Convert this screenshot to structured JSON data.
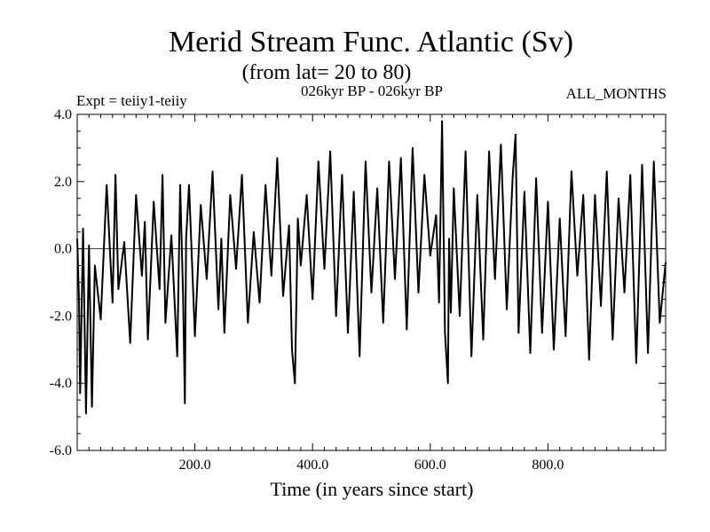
{
  "chart_data": {
    "type": "line",
    "title": "Merid Stream Func. Atlantic (Sv)",
    "subtitle": "(from lat= 20 to 80)",
    "annotations": {
      "left": "Expt = teiiy1-teiiy",
      "center": "026kyr BP - 026kyr BP",
      "right": "ALL_MONTHS"
    },
    "xlabel": "Time (in years since start)",
    "ylabel": "",
    "xlim": [
      0,
      1000
    ],
    "ylim": [
      -6,
      4
    ],
    "x_ticks": [
      200,
      400,
      600,
      800
    ],
    "x_tick_labels": [
      "200.0",
      "400.0",
      "600.0",
      "800.0"
    ],
    "y_ticks": [
      -6,
      -4,
      -2,
      0,
      2,
      4
    ],
    "y_tick_labels": [
      "-6.0",
      "-4.0",
      "-2.0",
      "0.0",
      "2.0",
      "4.0"
    ],
    "reference_line": 0,
    "grid": false,
    "series": [
      {
        "x": [
          0,
          3,
          5,
          10,
          15,
          20,
          25,
          30,
          40,
          50,
          60,
          65,
          70,
          80,
          90,
          100,
          110,
          115,
          120,
          130,
          140,
          145,
          150,
          160,
          170,
          175,
          180,
          183,
          185,
          190,
          200,
          210,
          220,
          230,
          240,
          245,
          250,
          260,
          270,
          280,
          290,
          300,
          310,
          320,
          330,
          340,
          350,
          360,
          365,
          370,
          375,
          380,
          390,
          400,
          410,
          420,
          430,
          440,
          450,
          460,
          470,
          480,
          490,
          500,
          510,
          520,
          530,
          540,
          550,
          560,
          570,
          580,
          590,
          600,
          610,
          615,
          620,
          625,
          630,
          632,
          635,
          640,
          650,
          660,
          670,
          680,
          690,
          700,
          710,
          720,
          730,
          740,
          745,
          750,
          760,
          770,
          780,
          790,
          800,
          810,
          820,
          830,
          840,
          850,
          860,
          870,
          880,
          890,
          900,
          910,
          920,
          930,
          940,
          950,
          960,
          970,
          980,
          990,
          1000
        ],
        "y": [
          0.3,
          -1.5,
          -4.3,
          0.6,
          -4.9,
          0.1,
          -4.7,
          -0.5,
          -2.1,
          1.9,
          -1.6,
          2.2,
          -1.2,
          0.2,
          -2.8,
          1.6,
          -0.8,
          0.8,
          -2.7,
          1.4,
          -1.2,
          2.2,
          -2.2,
          0.4,
          -3.2,
          1.9,
          -1.4,
          -4.6,
          0.3,
          1.9,
          -2.6,
          1.3,
          -0.9,
          2.3,
          -1.8,
          0.3,
          -2.5,
          1.6,
          -0.6,
          2.2,
          -2.2,
          0.5,
          -1.6,
          1.9,
          -0.8,
          2.7,
          -1.4,
          0.7,
          -3.0,
          -4.0,
          0.9,
          -0.5,
          1.6,
          -1.5,
          2.6,
          -0.6,
          2.9,
          -2.0,
          2.2,
          -2.5,
          1.7,
          -3.2,
          2.6,
          -1.3,
          1.8,
          -2.2,
          2.6,
          -0.9,
          2.7,
          -2.4,
          3.0,
          -1.3,
          2.2,
          -0.2,
          1.0,
          -1.6,
          3.8,
          -2.5,
          -4.0,
          0.3,
          -1.9,
          1.8,
          -2.0,
          2.9,
          -3.2,
          1.6,
          -2.7,
          2.9,
          -0.9,
          3.1,
          -1.8,
          2.1,
          3.4,
          -2.5,
          1.7,
          -3.1,
          2.1,
          -2.5,
          1.4,
          -3.0,
          0.9,
          -2.6,
          2.3,
          -0.8,
          1.6,
          -3.3,
          1.6,
          -1.7,
          2.3,
          -2.7,
          1.5,
          -1.3,
          2.2,
          -3.4,
          2.5,
          -3.1,
          2.6,
          -2.2,
          -0.4
        ]
      }
    ]
  }
}
